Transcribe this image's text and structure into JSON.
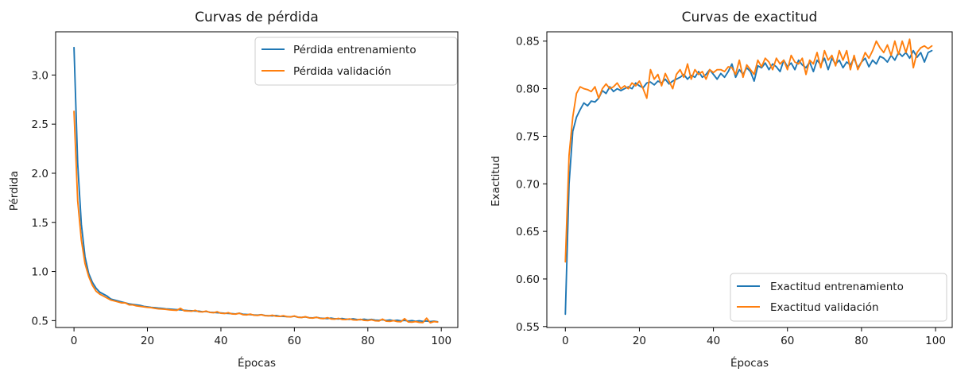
{
  "chart_data": [
    {
      "type": "line",
      "title": "Curvas de pérdida",
      "xlabel": "Épocas",
      "ylabel": "Pérdida",
      "xlim": [
        -5,
        104.5
      ],
      "ylim": [
        0.43,
        3.44
      ],
      "xticks": [
        0,
        20,
        40,
        60,
        80,
        100
      ],
      "xtick_labels": [
        "0",
        "20",
        "40",
        "60",
        "80",
        "100"
      ],
      "yticks": [
        0.5,
        1.0,
        1.5,
        2.0,
        2.5,
        3.0
      ],
      "ytick_labels": [
        "0.5",
        "1.0",
        "1.5",
        "2.0",
        "2.5",
        "3.0"
      ],
      "grid": false,
      "legend_position": "upper right",
      "series": [
        {
          "name": "Pérdida entrenamiento",
          "color": "#1f77b4",
          "x": [
            0,
            1,
            2,
            3,
            4,
            5,
            6,
            7,
            8,
            9,
            10,
            11,
            12,
            13,
            14,
            15,
            16,
            17,
            18,
            19,
            20,
            21,
            22,
            23,
            24,
            25,
            26,
            27,
            28,
            29,
            30,
            31,
            32,
            33,
            34,
            35,
            36,
            37,
            38,
            39,
            40,
            41,
            42,
            43,
            44,
            45,
            46,
            47,
            48,
            49,
            50,
            51,
            52,
            53,
            54,
            55,
            56,
            57,
            58,
            59,
            60,
            61,
            62,
            63,
            64,
            65,
            66,
            67,
            68,
            69,
            70,
            71,
            72,
            73,
            74,
            75,
            76,
            77,
            78,
            79,
            80,
            81,
            82,
            83,
            84,
            85,
            86,
            87,
            88,
            89,
            90,
            91,
            92,
            93,
            94,
            95,
            96,
            97,
            98,
            99
          ],
          "y": [
            3.28,
            2.1,
            1.48,
            1.15,
            0.98,
            0.89,
            0.83,
            0.79,
            0.77,
            0.75,
            0.72,
            0.71,
            0.7,
            0.69,
            0.68,
            0.67,
            0.665,
            0.66,
            0.655,
            0.645,
            0.64,
            0.635,
            0.632,
            0.628,
            0.625,
            0.62,
            0.618,
            0.615,
            0.612,
            0.61,
            0.605,
            0.602,
            0.6,
            0.598,
            0.596,
            0.59,
            0.593,
            0.585,
            0.583,
            0.58,
            0.578,
            0.575,
            0.573,
            0.571,
            0.568,
            0.575,
            0.565,
            0.563,
            0.561,
            0.558,
            0.556,
            0.561,
            0.552,
            0.55,
            0.548,
            0.552,
            0.545,
            0.543,
            0.541,
            0.539,
            0.545,
            0.535,
            0.533,
            0.538,
            0.53,
            0.528,
            0.534,
            0.526,
            0.523,
            0.521,
            0.526,
            0.519,
            0.517,
            0.522,
            0.515,
            0.513,
            0.518,
            0.511,
            0.509,
            0.514,
            0.507,
            0.512,
            0.505,
            0.503,
            0.508,
            0.501,
            0.506,
            0.499,
            0.504,
            0.497,
            0.502,
            0.495,
            0.5,
            0.493,
            0.498,
            0.492,
            0.496,
            0.49,
            0.494,
            0.488
          ]
        },
        {
          "name": "Pérdida validación",
          "color": "#ff7f0e",
          "x": [
            0,
            1,
            2,
            3,
            4,
            5,
            6,
            7,
            8,
            9,
            10,
            11,
            12,
            13,
            14,
            15,
            16,
            17,
            18,
            19,
            20,
            21,
            22,
            23,
            24,
            25,
            26,
            27,
            28,
            29,
            30,
            31,
            32,
            33,
            34,
            35,
            36,
            37,
            38,
            39,
            40,
            41,
            42,
            43,
            44,
            45,
            46,
            47,
            48,
            49,
            50,
            51,
            52,
            53,
            54,
            55,
            56,
            57,
            58,
            59,
            60,
            61,
            62,
            63,
            64,
            65,
            66,
            67,
            68,
            69,
            70,
            71,
            72,
            73,
            74,
            75,
            76,
            77,
            78,
            79,
            80,
            81,
            82,
            83,
            84,
            85,
            86,
            87,
            88,
            89,
            90,
            91,
            92,
            93,
            94,
            95,
            96,
            97,
            98,
            99
          ],
          "y": [
            2.63,
            1.72,
            1.32,
            1.08,
            0.95,
            0.86,
            0.8,
            0.77,
            0.75,
            0.73,
            0.71,
            0.7,
            0.69,
            0.68,
            0.68,
            0.66,
            0.66,
            0.65,
            0.645,
            0.64,
            0.635,
            0.632,
            0.625,
            0.62,
            0.618,
            0.615,
            0.61,
            0.607,
            0.605,
            0.625,
            0.6,
            0.598,
            0.595,
            0.605,
            0.59,
            0.588,
            0.597,
            0.583,
            0.58,
            0.59,
            0.575,
            0.572,
            0.58,
            0.568,
            0.566,
            0.575,
            0.56,
            0.558,
            0.566,
            0.555,
            0.553,
            0.56,
            0.55,
            0.548,
            0.555,
            0.545,
            0.543,
            0.55,
            0.54,
            0.538,
            0.547,
            0.534,
            0.532,
            0.54,
            0.528,
            0.526,
            0.534,
            0.523,
            0.52,
            0.53,
            0.517,
            0.515,
            0.523,
            0.512,
            0.51,
            0.518,
            0.507,
            0.505,
            0.513,
            0.502,
            0.5,
            0.508,
            0.498,
            0.496,
            0.515,
            0.494,
            0.492,
            0.5,
            0.49,
            0.488,
            0.52,
            0.486,
            0.484,
            0.49,
            0.482,
            0.48,
            0.525,
            0.478,
            0.49,
            0.485
          ]
        }
      ]
    },
    {
      "type": "line",
      "title": "Curvas de exactitud",
      "xlabel": "Épocas",
      "ylabel": "Exactitud",
      "xlim": [
        -5,
        104.5
      ],
      "ylim": [
        0.549,
        0.8598
      ],
      "xticks": [
        0,
        20,
        40,
        60,
        80,
        100
      ],
      "xtick_labels": [
        "0",
        "20",
        "40",
        "60",
        "80",
        "100"
      ],
      "yticks": [
        0.55,
        0.6,
        0.65,
        0.7,
        0.75,
        0.8,
        0.85
      ],
      "ytick_labels": [
        "0.55",
        "0.60",
        "0.65",
        "0.70",
        "0.75",
        "0.80",
        "0.85"
      ],
      "grid": false,
      "legend_position": "lower right",
      "series": [
        {
          "name": "Exactitud entrenamiento",
          "color": "#1f77b4",
          "x": [
            0,
            1,
            2,
            3,
            4,
            5,
            6,
            7,
            8,
            9,
            10,
            11,
            12,
            13,
            14,
            15,
            16,
            17,
            18,
            19,
            20,
            21,
            22,
            23,
            24,
            25,
            26,
            27,
            28,
            29,
            30,
            31,
            32,
            33,
            34,
            35,
            36,
            37,
            38,
            39,
            40,
            41,
            42,
            43,
            44,
            45,
            46,
            47,
            48,
            49,
            50,
            51,
            52,
            53,
            54,
            55,
            56,
            57,
            58,
            59,
            60,
            61,
            62,
            63,
            64,
            65,
            66,
            67,
            68,
            69,
            70,
            71,
            72,
            73,
            74,
            75,
            76,
            77,
            78,
            79,
            80,
            81,
            82,
            83,
            84,
            85,
            86,
            87,
            88,
            89,
            90,
            91,
            92,
            93,
            94,
            95,
            96,
            97,
            98,
            99
          ],
          "y": [
            0.563,
            0.7,
            0.755,
            0.77,
            0.778,
            0.785,
            0.782,
            0.787,
            0.786,
            0.79,
            0.798,
            0.795,
            0.802,
            0.797,
            0.8,
            0.798,
            0.8,
            0.802,
            0.8,
            0.806,
            0.803,
            0.801,
            0.806,
            0.807,
            0.804,
            0.808,
            0.806,
            0.81,
            0.805,
            0.808,
            0.81,
            0.812,
            0.815,
            0.81,
            0.814,
            0.812,
            0.818,
            0.812,
            0.815,
            0.82,
            0.815,
            0.81,
            0.816,
            0.812,
            0.818,
            0.826,
            0.812,
            0.82,
            0.815,
            0.822,
            0.818,
            0.808,
            0.824,
            0.822,
            0.827,
            0.82,
            0.826,
            0.823,
            0.818,
            0.83,
            0.823,
            0.827,
            0.82,
            0.83,
            0.825,
            0.822,
            0.828,
            0.818,
            0.83,
            0.825,
            0.832,
            0.82,
            0.832,
            0.826,
            0.83,
            0.822,
            0.828,
            0.825,
            0.832,
            0.822,
            0.828,
            0.832,
            0.823,
            0.83,
            0.826,
            0.834,
            0.832,
            0.828,
            0.835,
            0.83,
            0.838,
            0.834,
            0.838,
            0.832,
            0.84,
            0.833,
            0.838,
            0.828,
            0.838,
            0.84
          ]
        },
        {
          "name": "Exactitud validación",
          "color": "#ff7f0e",
          "x": [
            0,
            1,
            2,
            3,
            4,
            5,
            6,
            7,
            8,
            9,
            10,
            11,
            12,
            13,
            14,
            15,
            16,
            17,
            18,
            19,
            20,
            21,
            22,
            23,
            24,
            25,
            26,
            27,
            28,
            29,
            30,
            31,
            32,
            33,
            34,
            35,
            36,
            37,
            38,
            39,
            40,
            41,
            42,
            43,
            44,
            45,
            46,
            47,
            48,
            49,
            50,
            51,
            52,
            53,
            54,
            55,
            56,
            57,
            58,
            59,
            60,
            61,
            62,
            63,
            64,
            65,
            66,
            67,
            68,
            69,
            70,
            71,
            72,
            73,
            74,
            75,
            76,
            77,
            78,
            79,
            80,
            81,
            82,
            83,
            84,
            85,
            86,
            87,
            88,
            89,
            90,
            91,
            92,
            93,
            94,
            95,
            96,
            97,
            98,
            99
          ],
          "y": [
            0.618,
            0.73,
            0.77,
            0.795,
            0.802,
            0.8,
            0.799,
            0.797,
            0.802,
            0.79,
            0.8,
            0.805,
            0.8,
            0.802,
            0.806,
            0.8,
            0.803,
            0.8,
            0.806,
            0.803,
            0.808,
            0.8,
            0.79,
            0.82,
            0.81,
            0.815,
            0.803,
            0.816,
            0.808,
            0.8,
            0.815,
            0.82,
            0.812,
            0.826,
            0.81,
            0.82,
            0.815,
            0.818,
            0.81,
            0.82,
            0.817,
            0.82,
            0.82,
            0.818,
            0.823,
            0.822,
            0.815,
            0.83,
            0.812,
            0.825,
            0.82,
            0.815,
            0.83,
            0.823,
            0.832,
            0.828,
            0.82,
            0.832,
            0.826,
            0.83,
            0.82,
            0.835,
            0.828,
            0.826,
            0.832,
            0.815,
            0.83,
            0.826,
            0.838,
            0.822,
            0.84,
            0.83,
            0.835,
            0.824,
            0.84,
            0.83,
            0.84,
            0.82,
            0.835,
            0.82,
            0.828,
            0.838,
            0.832,
            0.84,
            0.85,
            0.843,
            0.838,
            0.846,
            0.835,
            0.85,
            0.836,
            0.85,
            0.838,
            0.852,
            0.822,
            0.838,
            0.843,
            0.845,
            0.842,
            0.845
          ]
        }
      ]
    }
  ]
}
